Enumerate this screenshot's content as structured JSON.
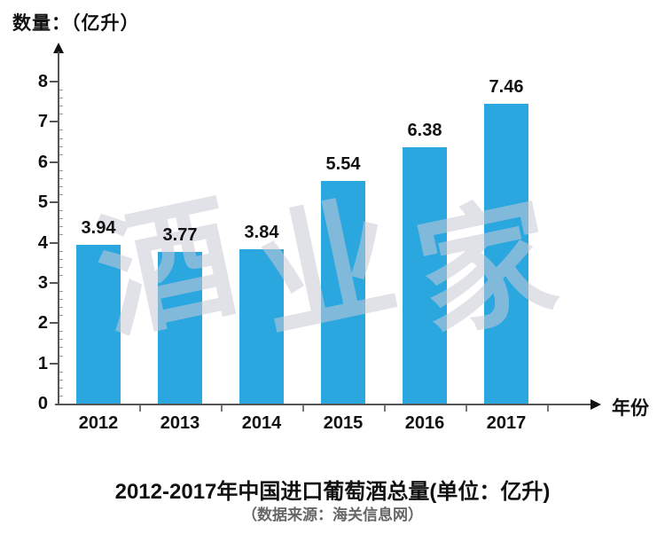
{
  "page": {
    "y_axis_title": "数量：（亿升）",
    "x_axis_title": "年份",
    "title": "2012-2017年中国进口葡萄酒总量(单位：亿升)",
    "source_note": "（数据来源：海关信息网）",
    "watermark_text": "酒业家"
  },
  "chart_data": {
    "type": "bar",
    "categories": [
      "2012",
      "2013",
      "2014",
      "2015",
      "2016",
      "2017"
    ],
    "values": [
      3.94,
      3.77,
      3.84,
      5.54,
      6.38,
      7.46
    ],
    "value_labels": [
      "3.94",
      "3.77",
      "3.84",
      "5.54",
      "6.38",
      "7.46"
    ],
    "title": "2012-2017年中国进口葡萄酒总量(单位：亿升)",
    "xlabel": "年份",
    "ylabel": "数量：（亿升）",
    "ylim": [
      0,
      8
    ],
    "y_tick_labels": [
      "0",
      "1",
      "2",
      "3",
      "4",
      "5",
      "6",
      "7",
      "8"
    ],
    "y_major_step": 1,
    "y_minor_step": 0.2,
    "grid": false,
    "legend_position": "none",
    "bar_color": "#2AA7DF",
    "source_note": "（数据来源：海关信息网）",
    "watermark": "酒业家"
  }
}
